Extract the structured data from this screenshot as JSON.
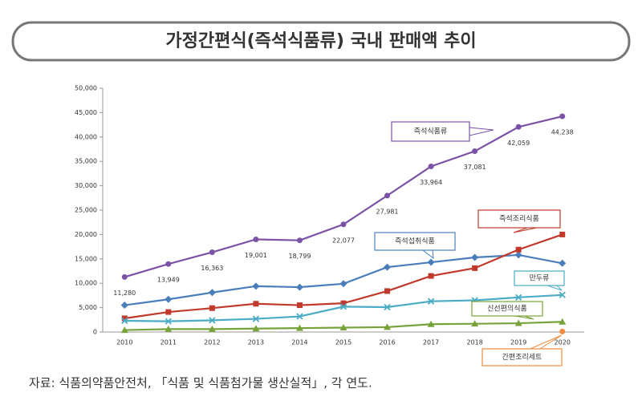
{
  "chart_data": {
    "type": "line",
    "title": "가정간편식(즉석식품류) 국내 판매액 추이",
    "source": "자료: 식품의약품안전처, 「식품 및 식품첨가물 생산실적」, 각 연도.",
    "categories": [
      "2010",
      "2011",
      "2012",
      "2013",
      "2014",
      "2015",
      "2016",
      "2017",
      "2018",
      "2019",
      "2020"
    ],
    "ylim": [
      0,
      50000
    ],
    "yticks": [
      0,
      {
        "value": 5000,
        "label": "5,000"
      },
      {
        "value": 10000,
        "label": "10,000"
      },
      {
        "value": 15000,
        "label": "15,000"
      },
      {
        "value": 20000,
        "label": "20,000"
      },
      {
        "value": 25000,
        "label": "25,000"
      },
      {
        "value": 30000,
        "label": "30,000"
      },
      {
        "value": 35000,
        "label": "35,000"
      },
      {
        "value": 40000,
        "label": "40,000"
      },
      {
        "value": 45000,
        "label": "45,000"
      },
      {
        "value": 50000,
        "label": "50,000"
      }
    ],
    "series": [
      {
        "name": "즉석식품류",
        "color": "#7b52a6",
        "marker": "circle",
        "values": [
          11280,
          13949,
          16363,
          19001,
          18799,
          22077,
          27981,
          33964,
          37081,
          42059,
          44238
        ],
        "value_labels": [
          "11,280",
          "13,949",
          "16,363",
          "19,001",
          "18,799",
          "22,077",
          "27,981",
          "33,964",
          "37,081",
          "42,059",
          "44,238"
        ]
      },
      {
        "name": "즉석섭취식품",
        "color": "#4a7ebb",
        "marker": "diamond",
        "values": [
          5500,
          6700,
          8100,
          9400,
          9200,
          9900,
          13300,
          14300,
          15300,
          15800,
          14100
        ]
      },
      {
        "name": "즉석조리식품",
        "color": "#c0392b",
        "marker": "square",
        "values": [
          2800,
          4100,
          4900,
          5800,
          5500,
          5900,
          8400,
          11500,
          13100,
          16900,
          20000
        ]
      },
      {
        "name": "만두류",
        "color": "#4bacc6",
        "marker": "x",
        "values": [
          2300,
          2200,
          2400,
          2700,
          3200,
          5200,
          5100,
          6300,
          6500,
          7100,
          7600
        ]
      },
      {
        "name": "신선편의식품",
        "color": "#77a33b",
        "marker": "triangle",
        "values": [
          400,
          600,
          600,
          700,
          800,
          900,
          1000,
          1600,
          1700,
          1800,
          2100
        ]
      },
      {
        "name": "간편조리세트",
        "color": "#f08a3c",
        "marker": "circle",
        "values": [
          null,
          null,
          null,
          null,
          null,
          null,
          null,
          null,
          null,
          null,
          100
        ]
      }
    ]
  }
}
